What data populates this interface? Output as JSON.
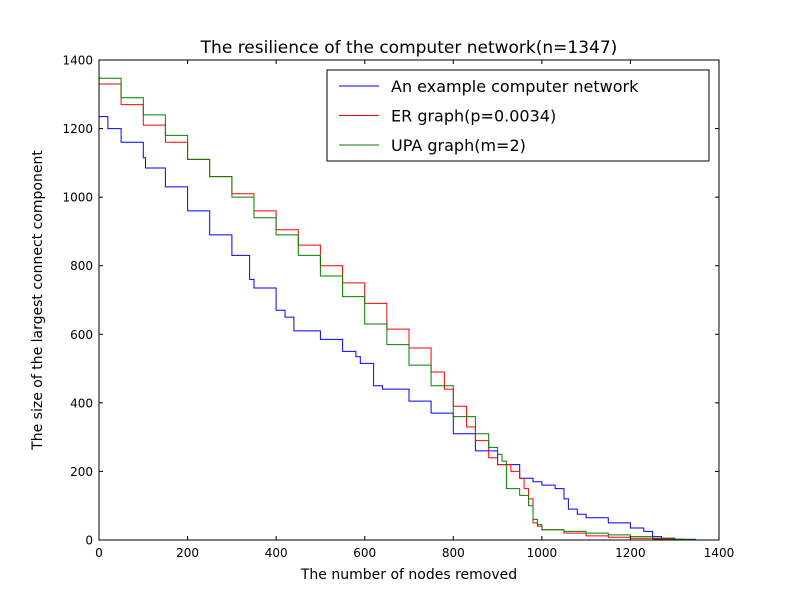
{
  "chart_data": {
    "type": "line",
    "title": "The resilience of the computer network(n=1347)",
    "xlabel": "The number of nodes removed",
    "ylabel": "The size of the largest connect component",
    "xlim": [
      0,
      1400
    ],
    "ylim": [
      0,
      1400
    ],
    "xticks": [
      0,
      200,
      400,
      600,
      800,
      1000,
      1200,
      1400
    ],
    "yticks": [
      0,
      200,
      400,
      600,
      800,
      1000,
      1200,
      1400
    ],
    "grid": false,
    "legend_position": "top-right",
    "series": [
      {
        "name": "An example computer network",
        "color": "#0000ff",
        "step": true,
        "x": [
          0,
          20,
          50,
          100,
          105,
          150,
          200,
          250,
          300,
          340,
          350,
          400,
          420,
          440,
          500,
          550,
          580,
          590,
          620,
          640,
          700,
          750,
          800,
          850,
          900,
          950,
          980,
          1000,
          1030,
          1050,
          1060,
          1080,
          1100,
          1150,
          1200,
          1230,
          1250,
          1270,
          1300,
          1320,
          1347
        ],
        "y": [
          1235,
          1200,
          1160,
          1115,
          1085,
          1030,
          960,
          890,
          830,
          760,
          735,
          670,
          650,
          610,
          585,
          550,
          535,
          515,
          450,
          440,
          405,
          370,
          310,
          260,
          220,
          180,
          170,
          160,
          150,
          120,
          90,
          75,
          65,
          50,
          35,
          25,
          10,
          5,
          2,
          1,
          0
        ]
      },
      {
        "name": "ER graph(p=0.0034)",
        "color": "#ff0000",
        "step": true,
        "x": [
          0,
          50,
          100,
          150,
          200,
          250,
          300,
          350,
          400,
          450,
          500,
          550,
          600,
          650,
          700,
          750,
          780,
          800,
          830,
          850,
          880,
          900,
          930,
          950,
          960,
          970,
          980,
          990,
          1000,
          1050,
          1100,
          1150,
          1200,
          1250,
          1300,
          1340
        ],
        "y": [
          1330,
          1270,
          1210,
          1160,
          1110,
          1060,
          1010,
          960,
          905,
          860,
          800,
          750,
          690,
          615,
          560,
          490,
          440,
          390,
          330,
          290,
          240,
          220,
          200,
          180,
          150,
          120,
          50,
          40,
          30,
          20,
          12,
          8,
          5,
          3,
          1,
          0
        ]
      },
      {
        "name": "UPA graph(m=2)",
        "color": "#008000",
        "step": true,
        "x": [
          0,
          50,
          100,
          150,
          200,
          250,
          300,
          350,
          400,
          450,
          500,
          550,
          600,
          650,
          700,
          750,
          800,
          850,
          880,
          900,
          910,
          920,
          950,
          970,
          980,
          990,
          1000,
          1050,
          1100,
          1150,
          1200,
          1250,
          1300,
          1347
        ],
        "y": [
          1347,
          1290,
          1240,
          1180,
          1110,
          1060,
          1000,
          940,
          890,
          830,
          770,
          710,
          630,
          570,
          510,
          450,
          360,
          310,
          270,
          250,
          230,
          150,
          130,
          100,
          60,
          45,
          30,
          25,
          20,
          15,
          10,
          5,
          2,
          0
        ]
      }
    ]
  }
}
